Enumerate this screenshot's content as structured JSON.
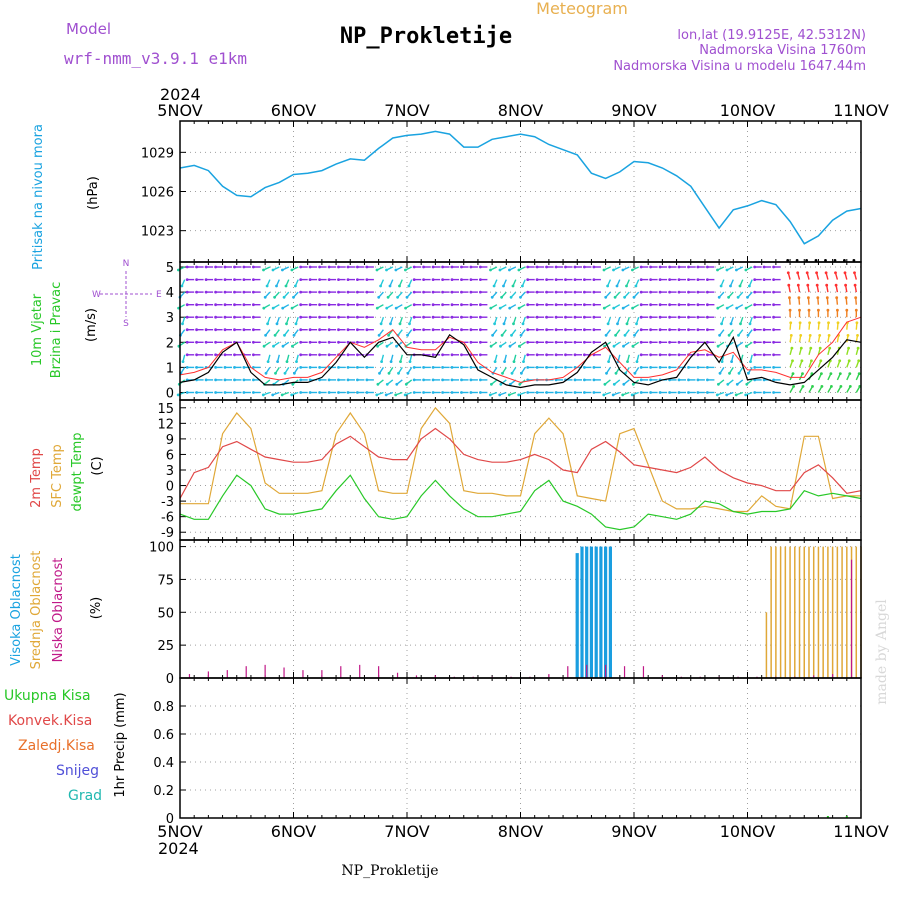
{
  "header": {
    "model_label": "Model",
    "model_name": "wrf-nmm_v3.9.1 e1km",
    "meteogram_label": "Meteogram",
    "station_title": "NP_Prokletije",
    "lonlat": "lon,lat (19.9125E, 42.5312N)",
    "elevation": "Nadmorska Visina 1760m",
    "model_elevation": "Nadmorska Visina u modelu 1647.44m",
    "year_top": "2024",
    "year_bottom": "2024",
    "footer_station": "NP_Prokletije",
    "credit": "made by Angel"
  },
  "colors": {
    "pressure": "#1aa3e0",
    "temp2m": "#e04848",
    "sfc_temp": "#e0a838",
    "dewpoint": "#28c828",
    "wind_speed": "#000000",
    "gust": "#ff3030",
    "high_cloud": "#1a9ee0",
    "mid_cloud": "#e0a838",
    "low_cloud": "#c01888",
    "violet_text": "#a050d0",
    "orange_text": "#e8b050"
  },
  "time_axis": {
    "top_labels": [
      "5NOV",
      "6NOV",
      "7NOV",
      "8NOV",
      "9NOV",
      "10NOV",
      "11NOV"
    ],
    "bottom_labels": [
      "5NOV",
      "6NOV",
      "7NOV",
      "8NOV",
      "9NOV",
      "10NOV",
      "11NOV"
    ]
  },
  "chart_data": [
    {
      "type": "line",
      "id": "pressure",
      "ylabel_left": "Pritisak na nivou mora",
      "unit": "(hPa)",
      "ylim": [
        1020.6,
        1031.4
      ],
      "yticks": [
        1023,
        1026,
        1029
      ],
      "grid": true,
      "x": [
        0,
        3,
        6,
        9,
        12,
        15,
        18,
        21,
        24,
        27,
        30,
        33,
        36,
        39,
        42,
        45,
        48,
        51,
        54,
        57,
        60,
        63,
        66,
        69,
        72,
        75,
        78,
        81,
        84,
        87,
        90,
        93,
        96,
        99,
        102,
        105,
        108,
        111,
        114,
        117,
        120,
        123,
        126,
        129,
        132,
        135,
        138,
        141,
        144
      ],
      "values": [
        1027.8,
        1028.0,
        1027.6,
        1026.4,
        1025.7,
        1025.6,
        1026.3,
        1026.7,
        1027.3,
        1027.4,
        1027.6,
        1028.1,
        1028.5,
        1028.4,
        1029.3,
        1030.1,
        1030.3,
        1030.4,
        1030.6,
        1030.4,
        1029.4,
        1029.4,
        1030.0,
        1030.2,
        1030.4,
        1030.2,
        1029.6,
        1029.2,
        1028.8,
        1027.4,
        1027.0,
        1027.5,
        1028.3,
        1028.2,
        1027.8,
        1027.2,
        1026.4,
        1024.8,
        1023.2,
        1024.6,
        1024.9,
        1025.3,
        1025.0,
        1023.7,
        1022.0,
        1022.6,
        1023.8,
        1024.5,
        1024.7
      ]
    },
    {
      "type": "line",
      "id": "wind",
      "ylabel_left1": "10m Vjetar",
      "ylabel_left2": "Brzina i Pravac",
      "unit": "(m/s)",
      "compass": {
        "n": "N",
        "e": "E",
        "w": "W",
        "s": "S"
      },
      "ylim": [
        -0.3,
        5.2
      ],
      "yticks": [
        0,
        1,
        2,
        3,
        4,
        5
      ],
      "grid": true,
      "x": [
        0,
        3,
        6,
        9,
        12,
        15,
        18,
        21,
        24,
        27,
        30,
        33,
        36,
        39,
        42,
        45,
        48,
        51,
        54,
        57,
        60,
        63,
        66,
        69,
        72,
        75,
        78,
        81,
        84,
        87,
        90,
        93,
        96,
        99,
        102,
        105,
        108,
        111,
        114,
        117,
        120,
        123,
        126,
        129,
        132,
        135,
        138,
        141,
        144
      ],
      "series": [
        {
          "id": "speed",
          "values": [
            0.4,
            0.5,
            0.8,
            1.6,
            2.0,
            0.8,
            0.3,
            0.3,
            0.4,
            0.4,
            0.6,
            1.2,
            2.0,
            1.4,
            2.0,
            2.2,
            1.5,
            1.5,
            1.4,
            2.3,
            1.9,
            0.9,
            0.6,
            0.3,
            0.2,
            0.3,
            0.3,
            0.4,
            0.8,
            1.6,
            2.0,
            0.9,
            0.4,
            0.3,
            0.5,
            0.6,
            1.4,
            2.0,
            1.2,
            2.2,
            0.5,
            0.6,
            0.4,
            0.3,
            0.4,
            0.9,
            1.4,
            2.1,
            2.0
          ]
        },
        {
          "id": "gust",
          "values": [
            0.7,
            0.8,
            1.0,
            1.7,
            2.0,
            1.0,
            0.6,
            0.5,
            0.6,
            0.6,
            0.8,
            1.4,
            2.0,
            1.8,
            2.1,
            2.5,
            1.8,
            1.7,
            1.7,
            2.2,
            2.0,
            1.2,
            0.8,
            0.6,
            0.4,
            0.5,
            0.5,
            0.6,
            1.0,
            1.5,
            1.8,
            1.2,
            0.6,
            0.6,
            0.7,
            0.9,
            1.6,
            1.7,
            1.4,
            1.6,
            0.9,
            0.9,
            0.8,
            0.6,
            0.6,
            1.5,
            2.0,
            2.8,
            3.0
          ]
        }
      ]
    },
    {
      "type": "line",
      "id": "temperature",
      "ylabel_left1": "2m Temp",
      "ylabel_left2": "SFC Temp",
      "ylabel_left3": "dewpt Temp",
      "unit": "(C)",
      "ylim": [
        -10.5,
        16.5
      ],
      "yticks": [
        -9,
        -6,
        -3,
        0,
        3,
        6,
        9,
        12,
        15
      ],
      "grid": true,
      "x": [
        0,
        3,
        6,
        9,
        12,
        15,
        18,
        21,
        24,
        27,
        30,
        33,
        36,
        39,
        42,
        45,
        48,
        51,
        54,
        57,
        60,
        63,
        66,
        69,
        72,
        75,
        78,
        81,
        84,
        87,
        90,
        93,
        96,
        99,
        102,
        105,
        108,
        111,
        114,
        117,
        120,
        123,
        126,
        129,
        132,
        135,
        138,
        141,
        144
      ],
      "series": [
        {
          "id": "t2m",
          "values": [
            -2.5,
            2.5,
            3.5,
            7.5,
            8.5,
            7.0,
            5.5,
            5.0,
            4.5,
            4.5,
            5.0,
            8.0,
            9.5,
            7.5,
            5.5,
            5.0,
            5.0,
            9.0,
            11.0,
            9.0,
            6.0,
            5.0,
            4.5,
            4.5,
            5.0,
            6.0,
            5.0,
            3.0,
            2.5,
            7.0,
            8.5,
            6.5,
            4.0,
            3.5,
            3.0,
            2.5,
            3.5,
            5.5,
            3.0,
            1.5,
            0.5,
            0.0,
            -1.0,
            -1.0,
            2.5,
            4.0,
            1.5,
            -1.5,
            -1.0
          ]
        },
        {
          "id": "sfc",
          "values": [
            -3.5,
            -3.5,
            -3.5,
            10.0,
            14.0,
            11.0,
            0.5,
            -1.5,
            -1.5,
            -1.5,
            -1.0,
            10.0,
            14.0,
            10.0,
            -1.0,
            -1.5,
            -1.5,
            11.0,
            15.0,
            12.0,
            -1.0,
            -1.5,
            -1.5,
            -2.0,
            -2.0,
            10.0,
            13.0,
            10.0,
            -2.0,
            -2.5,
            -3.0,
            10.0,
            11.0,
            4.0,
            -3.0,
            -4.5,
            -4.5,
            -4.0,
            -4.5,
            -5.0,
            -5.0,
            -2.0,
            -4.0,
            -4.5,
            9.5,
            9.5,
            -2.5,
            -2.0,
            -2.0
          ]
        },
        {
          "id": "dewpt",
          "values": [
            -5.5,
            -6.5,
            -6.5,
            -2.0,
            2.0,
            0.0,
            -4.5,
            -5.5,
            -5.5,
            -5.0,
            -4.5,
            -1.0,
            2.0,
            -2.5,
            -6.0,
            -6.5,
            -6.0,
            -2.0,
            1.0,
            -2.0,
            -4.5,
            -6.0,
            -6.0,
            -5.5,
            -5.0,
            -1.0,
            1.0,
            -3.0,
            -4.0,
            -5.5,
            -8.0,
            -8.5,
            -8.0,
            -5.5,
            -6.0,
            -6.5,
            -5.5,
            -3.0,
            -3.5,
            -5.0,
            -5.5,
            -5.0,
            -5.0,
            -4.5,
            -1.0,
            -2.0,
            -1.5,
            -2.0,
            -2.5
          ]
        }
      ]
    },
    {
      "type": "bar",
      "id": "clouds",
      "ylabel_left1": "Visoka Oblacnost",
      "ylabel_left2": "Srednja Oblacnost",
      "ylabel_left3": "Niska Oblacnost",
      "unit": "(%)",
      "ylim": [
        0,
        105
      ],
      "yticks": [
        0,
        25,
        50,
        75,
        100
      ],
      "grid": true,
      "series": [
        {
          "id": "high",
          "x": [
            84,
            85,
            86,
            87,
            88,
            89,
            90,
            91
          ],
          "values": [
            95,
            100,
            100,
            100,
            100,
            100,
            100,
            100
          ]
        },
        {
          "id": "mid",
          "x": [
            124,
            125,
            126,
            127,
            128,
            129,
            130,
            131,
            132,
            133,
            134,
            135,
            136,
            137,
            138,
            139,
            140,
            141,
            142,
            143,
            144
          ],
          "values": [
            50,
            100,
            100,
            100,
            100,
            100,
            100,
            100,
            100,
            100,
            100,
            100,
            100,
            100,
            100,
            100,
            100,
            100,
            100,
            100,
            100
          ]
        },
        {
          "id": "low",
          "x": [
            2,
            6,
            10,
            14,
            18,
            22,
            26,
            30,
            34,
            38,
            42,
            46,
            50,
            54,
            58,
            62,
            66,
            70,
            74,
            78,
            82,
            86,
            90,
            94,
            98,
            102,
            106,
            110,
            114,
            118,
            122,
            126,
            130,
            134,
            138,
            142
          ],
          "values": [
            3,
            5,
            6,
            9,
            10,
            8,
            6,
            6,
            9,
            10,
            9,
            4,
            2,
            2,
            1,
            1,
            1,
            1,
            1,
            3,
            9,
            10,
            10,
            9,
            9,
            2,
            1,
            1,
            1,
            1,
            1,
            1,
            1,
            2,
            3,
            90
          ]
        }
      ]
    },
    {
      "type": "bar",
      "id": "precip",
      "ylabel_left1": "1hr Precip",
      "unit": "(mm)",
      "legend": [
        "Ukupna Kisa",
        "Konvek.Kisa",
        "Zaledj.Kisa",
        "Snijeg",
        "Grad"
      ],
      "ylim": [
        0,
        1.0
      ],
      "yticks": [
        0,
        0.2,
        0.4,
        0.6,
        0.8
      ],
      "ytick_labels": [
        "0",
        "0.2",
        "0.4",
        "0.6",
        "0.8"
      ],
      "grid": true,
      "series": [
        {
          "id": "total",
          "x": [
            137,
            141
          ],
          "values": [
            0.01,
            0.01
          ]
        },
        {
          "id": "snow",
          "x": [],
          "values": []
        }
      ]
    }
  ]
}
